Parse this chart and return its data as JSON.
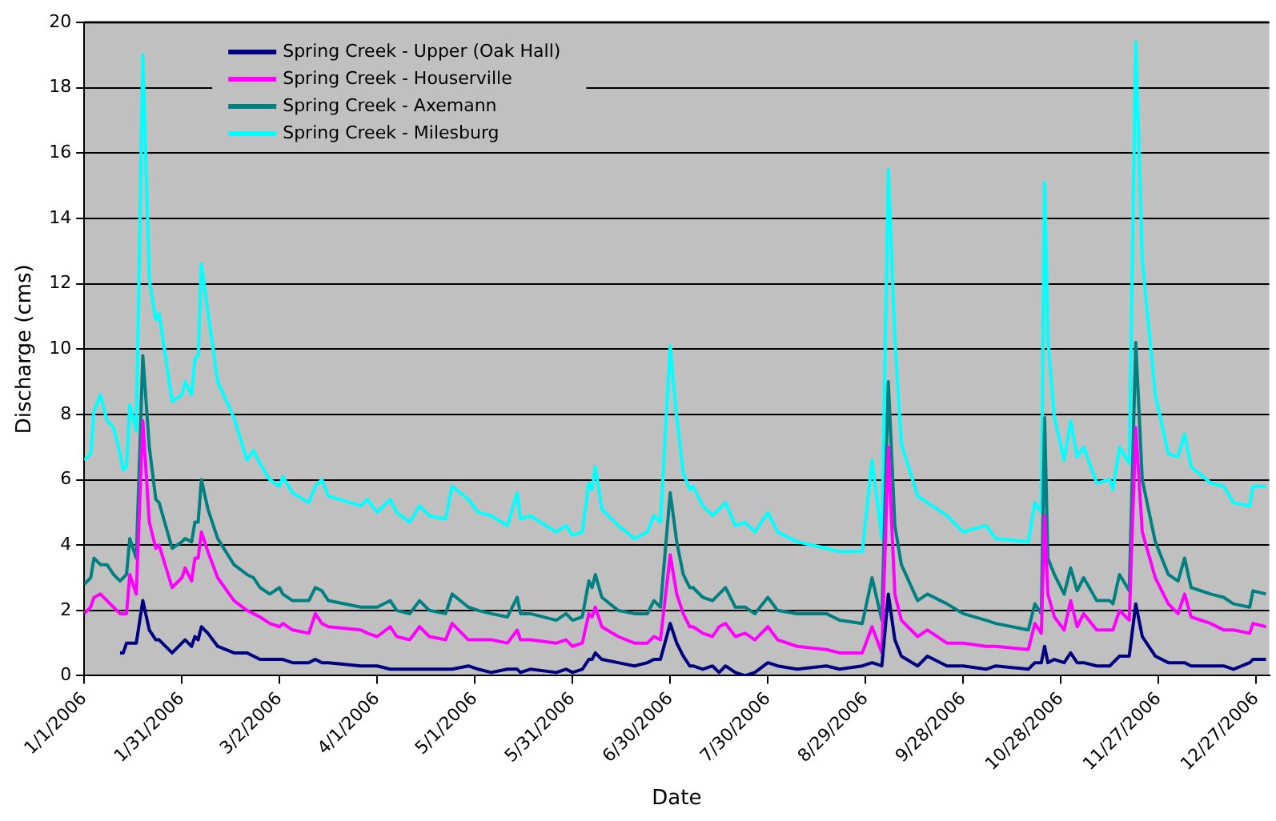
{
  "chart_data": {
    "type": "line",
    "xlabel": "Date",
    "ylabel": "Discharge (cms)",
    "x": [
      "2006-01-01",
      "2006-01-03",
      "2006-01-04",
      "2006-01-06",
      "2006-01-08",
      "2006-01-10",
      "2006-01-12",
      "2006-01-13",
      "2006-01-14",
      "2006-01-15",
      "2006-01-17",
      "2006-01-19",
      "2006-01-21",
      "2006-01-23",
      "2006-01-24",
      "2006-01-28",
      "2006-01-31",
      "2006-02-01",
      "2006-02-03",
      "2006-02-04",
      "2006-02-05",
      "2006-02-06",
      "2006-02-08",
      "2006-02-11",
      "2006-02-16",
      "2006-02-20",
      "2006-02-22",
      "2006-02-24",
      "2006-02-27",
      "2006-03-02",
      "2006-03-03",
      "2006-03-06",
      "2006-03-11",
      "2006-03-13",
      "2006-03-15",
      "2006-03-17",
      "2006-03-27",
      "2006-03-29",
      "2006-04-01",
      "2006-04-05",
      "2006-04-07",
      "2006-04-11",
      "2006-04-14",
      "2006-04-17",
      "2006-04-22",
      "2006-04-24",
      "2006-04-29",
      "2006-05-02",
      "2006-05-06",
      "2006-05-11",
      "2006-05-14",
      "2006-05-15",
      "2006-05-18",
      "2006-05-26",
      "2006-05-29",
      "2006-05-31",
      "2006-06-03",
      "2006-06-05",
      "2006-06-06",
      "2006-06-07",
      "2006-06-09",
      "2006-06-14",
      "2006-06-19",
      "2006-06-23",
      "2006-06-25",
      "2006-06-27",
      "2006-06-30",
      "2006-07-02",
      "2006-07-04",
      "2006-07-06",
      "2006-07-07",
      "2006-07-10",
      "2006-07-13",
      "2006-07-15",
      "2006-07-17",
      "2006-07-20",
      "2006-07-23",
      "2006-07-26",
      "2006-07-30",
      "2006-08-02",
      "2006-08-08",
      "2006-08-17",
      "2006-08-21",
      "2006-08-28",
      "2006-08-31",
      "2006-09-03",
      "2006-09-05",
      "2006-09-07",
      "2006-09-09",
      "2006-09-14",
      "2006-09-17",
      "2006-09-23",
      "2006-09-28",
      "2006-10-05",
      "2006-10-08",
      "2006-10-18",
      "2006-10-20",
      "2006-10-22",
      "2006-10-23",
      "2006-10-24",
      "2006-10-26",
      "2006-10-29",
      "2006-10-31",
      "2006-11-02",
      "2006-11-04",
      "2006-11-08",
      "2006-11-12",
      "2006-11-13",
      "2006-11-15",
      "2006-11-18",
      "2006-11-20",
      "2006-11-22",
      "2006-11-26",
      "2006-11-30",
      "2006-12-03",
      "2006-12-05",
      "2006-12-07",
      "2006-12-13",
      "2006-12-17",
      "2006-12-20",
      "2006-12-25",
      "2006-12-26",
      "2006-12-30"
    ],
    "series": [
      {
        "name": "Spring Creek - Upper (Oak Hall)",
        "color": "#000080",
        "values": [
          null,
          null,
          null,
          null,
          null,
          null,
          0.7,
          0.7,
          1.0,
          1.0,
          1.0,
          2.3,
          1.4,
          1.1,
          1.1,
          0.7,
          1.0,
          1.1,
          0.9,
          1.2,
          1.1,
          1.5,
          1.3,
          0.9,
          0.7,
          0.7,
          0.6,
          0.5,
          0.5,
          0.5,
          0.5,
          0.4,
          0.4,
          0.5,
          0.4,
          0.4,
          0.3,
          0.3,
          0.3,
          0.2,
          0.2,
          0.2,
          0.2,
          0.2,
          0.2,
          0.2,
          0.3,
          0.2,
          0.1,
          0.2,
          0.2,
          0.1,
          0.2,
          0.1,
          0.2,
          0.1,
          0.2,
          0.5,
          0.5,
          0.7,
          0.5,
          0.4,
          0.3,
          0.4,
          0.5,
          0.5,
          1.6,
          1.0,
          0.6,
          0.3,
          0.3,
          0.2,
          0.3,
          0.1,
          0.3,
          0.1,
          0.0,
          0.1,
          0.4,
          0.3,
          0.2,
          0.3,
          0.2,
          0.3,
          0.4,
          0.3,
          2.5,
          1.1,
          0.6,
          0.3,
          0.6,
          0.3,
          0.3,
          0.2,
          0.3,
          0.2,
          0.4,
          0.4,
          0.9,
          0.4,
          0.5,
          0.4,
          0.7,
          0.4,
          0.4,
          0.3,
          0.3,
          0.4,
          0.6,
          0.6,
          2.2,
          1.2,
          0.6,
          0.4,
          0.4,
          0.4,
          0.3,
          0.3,
          0.3,
          0.2,
          0.4,
          0.5,
          0.5
        ]
      },
      {
        "name": "Spring Creek - Houserville",
        "color": "#ff00ff",
        "values": [
          1.9,
          2.1,
          2.4,
          2.5,
          2.3,
          2.1,
          1.9,
          1.9,
          1.9,
          3.1,
          2.5,
          7.8,
          4.7,
          3.9,
          4.0,
          2.7,
          3.0,
          3.3,
          2.9,
          3.6,
          3.6,
          4.4,
          3.8,
          3.0,
          2.3,
          2.0,
          1.9,
          1.8,
          1.6,
          1.5,
          1.6,
          1.4,
          1.3,
          1.9,
          1.6,
          1.5,
          1.4,
          1.3,
          1.2,
          1.5,
          1.2,
          1.1,
          1.5,
          1.2,
          1.1,
          1.6,
          1.1,
          1.1,
          1.1,
          1.0,
          1.4,
          1.1,
          1.1,
          1.0,
          1.1,
          0.9,
          1.0,
          1.9,
          1.8,
          2.1,
          1.5,
          1.2,
          1.0,
          1.0,
          1.2,
          1.1,
          3.7,
          2.5,
          1.9,
          1.5,
          1.5,
          1.3,
          1.2,
          1.5,
          1.6,
          1.2,
          1.3,
          1.1,
          1.5,
          1.1,
          0.9,
          0.8,
          0.7,
          0.7,
          1.5,
          0.7,
          7.0,
          2.5,
          1.7,
          1.2,
          1.4,
          1.0,
          1.0,
          0.9,
          0.9,
          0.8,
          1.6,
          1.3,
          4.9,
          2.5,
          1.8,
          1.4,
          2.3,
          1.5,
          1.9,
          1.4,
          1.4,
          1.4,
          2.0,
          1.7,
          7.6,
          4.4,
          3.0,
          2.2,
          1.9,
          2.5,
          1.8,
          1.6,
          1.4,
          1.4,
          1.3,
          1.6,
          1.5
        ]
      },
      {
        "name": "Spring Creek - Axemann",
        "color": "#008080",
        "values": [
          2.8,
          3.0,
          3.6,
          3.4,
          3.4,
          3.1,
          2.9,
          3.0,
          3.1,
          4.2,
          3.6,
          9.8,
          7.0,
          5.4,
          5.3,
          3.9,
          4.1,
          4.2,
          4.1,
          4.7,
          4.7,
          6.0,
          5.1,
          4.2,
          3.4,
          3.1,
          3.0,
          2.7,
          2.5,
          2.7,
          2.5,
          2.3,
          2.3,
          2.7,
          2.6,
          2.3,
          2.1,
          2.1,
          2.1,
          2.3,
          2.0,
          1.9,
          2.3,
          2.0,
          1.9,
          2.5,
          2.1,
          2.0,
          1.9,
          1.8,
          2.4,
          1.9,
          1.9,
          1.7,
          1.9,
          1.7,
          1.8,
          2.9,
          2.7,
          3.1,
          2.4,
          2.0,
          1.9,
          1.9,
          2.3,
          2.1,
          5.6,
          4.1,
          3.1,
          2.7,
          2.7,
          2.4,
          2.3,
          2.5,
          2.7,
          2.1,
          2.1,
          1.9,
          2.4,
          2.0,
          1.9,
          1.9,
          1.7,
          1.6,
          3.0,
          1.7,
          9.0,
          4.6,
          3.4,
          2.3,
          2.5,
          2.2,
          1.9,
          1.7,
          1.6,
          1.4,
          2.2,
          1.9,
          7.9,
          3.6,
          3.1,
          2.5,
          3.3,
          2.6,
          3.0,
          2.3,
          2.3,
          2.2,
          3.1,
          2.6,
          10.2,
          6.0,
          4.1,
          3.1,
          2.9,
          3.6,
          2.7,
          2.5,
          2.4,
          2.2,
          2.1,
          2.6,
          2.5
        ]
      },
      {
        "name": "Spring Creek - Milesburg",
        "color": "#00ffff",
        "values": [
          6.6,
          6.8,
          8.1,
          8.6,
          7.8,
          7.6,
          6.8,
          6.3,
          6.4,
          8.3,
          7.5,
          19.0,
          12.1,
          10.9,
          11.1,
          8.4,
          8.6,
          9.0,
          8.6,
          9.7,
          9.8,
          12.6,
          11.1,
          9.0,
          7.9,
          6.6,
          6.9,
          6.5,
          6.0,
          5.8,
          6.1,
          5.6,
          5.3,
          5.8,
          6.0,
          5.5,
          5.2,
          5.4,
          5.0,
          5.4,
          5.0,
          4.7,
          5.2,
          4.9,
          4.8,
          5.8,
          5.4,
          5.0,
          4.9,
          4.6,
          5.6,
          4.8,
          4.9,
          4.4,
          4.6,
          4.3,
          4.4,
          5.9,
          5.7,
          6.4,
          5.1,
          4.6,
          4.2,
          4.4,
          4.9,
          4.7,
          10.1,
          7.9,
          6.2,
          5.7,
          5.8,
          5.2,
          4.9,
          5.1,
          5.3,
          4.6,
          4.7,
          4.4,
          5.0,
          4.4,
          4.1,
          3.9,
          3.8,
          3.8,
          6.6,
          4.2,
          15.5,
          10.3,
          7.1,
          5.5,
          5.3,
          4.9,
          4.4,
          4.6,
          4.2,
          4.1,
          5.3,
          5.0,
          15.1,
          10.3,
          7.9,
          6.6,
          7.8,
          6.7,
          7.0,
          5.9,
          6.0,
          5.7,
          7.0,
          6.5,
          19.4,
          12.7,
          8.6,
          6.8,
          6.7,
          7.4,
          6.4,
          5.9,
          5.8,
          5.3,
          5.2,
          5.8,
          5.8
        ]
      }
    ],
    "xlim": [
      "2006-01-01",
      "2006-12-31"
    ],
    "xticks": [
      {
        "value": "2006-01-01",
        "label": "1/1/2006"
      },
      {
        "value": "2006-01-31",
        "label": "1/31/2006"
      },
      {
        "value": "2006-03-02",
        "label": "3/2/2006"
      },
      {
        "value": "2006-04-01",
        "label": "4/1/2006"
      },
      {
        "value": "2006-05-01",
        "label": "5/1/2006"
      },
      {
        "value": "2006-05-31",
        "label": "5/31/2006"
      },
      {
        "value": "2006-06-30",
        "label": "6/30/2006"
      },
      {
        "value": "2006-07-30",
        "label": "7/30/2006"
      },
      {
        "value": "2006-08-29",
        "label": "8/29/2006"
      },
      {
        "value": "2006-09-28",
        "label": "9/28/2006"
      },
      {
        "value": "2006-10-28",
        "label": "10/28/2006"
      },
      {
        "value": "2006-11-27",
        "label": "11/27/2006"
      },
      {
        "value": "2006-12-27",
        "label": "12/27/2006"
      }
    ],
    "ylim": [
      0,
      20
    ],
    "yticks": [
      0,
      2,
      4,
      6,
      8,
      10,
      12,
      14,
      16,
      18,
      20
    ],
    "grid": "y",
    "legend": "top",
    "marker": "none",
    "line_style": "solid"
  }
}
